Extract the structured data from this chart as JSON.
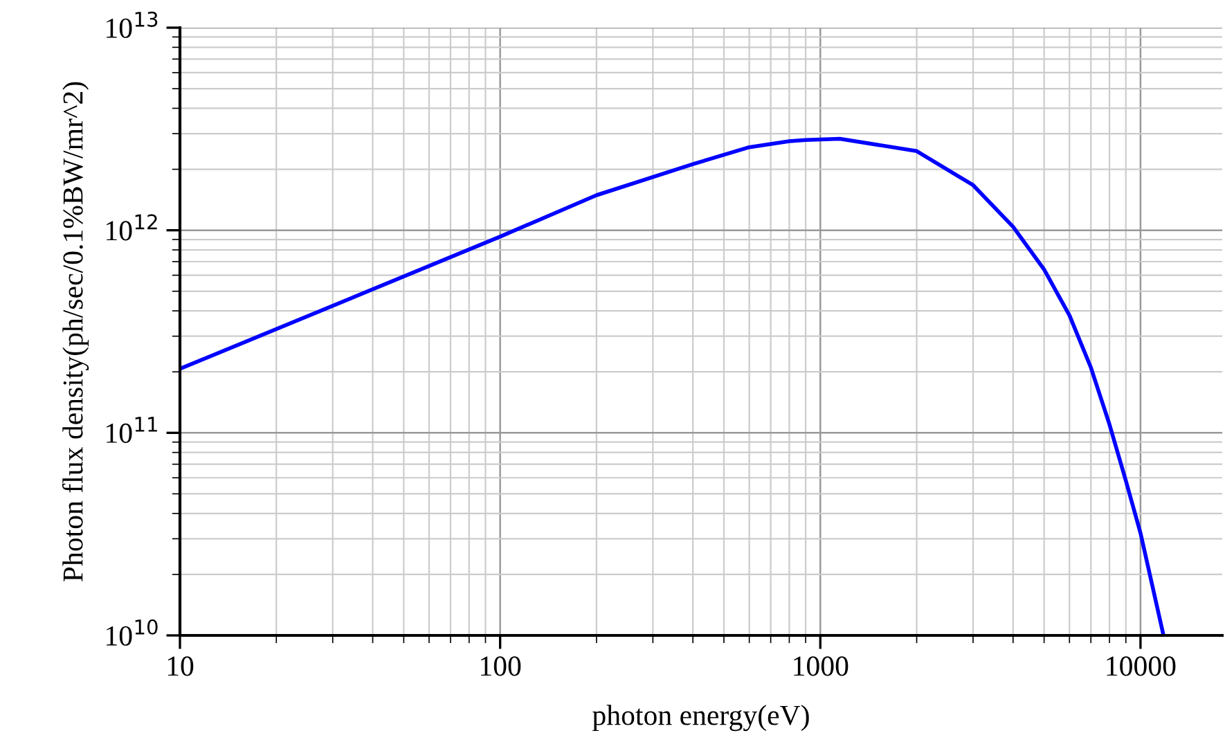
{
  "chart_data": {
    "type": "line",
    "xlabel": "photon energy(eV)",
    "ylabel": "Photon flux density(ph/sec/0.1%BW/mr^2)",
    "log": "xy",
    "grid": true,
    "xlim": [
      10,
      18000
    ],
    "ylim": [
      10000000000.0,
      10000000000000.0
    ],
    "xticks": [
      10,
      100,
      1000,
      10000
    ],
    "yticks": [
      {
        "value": 10000000000.0,
        "label": "10$^{10}$"
      },
      {
        "value": 100000000000.0,
        "label": "10$^{11}$"
      },
      {
        "value": 1000000000000.0,
        "label": "10$^{12}$"
      },
      {
        "value": 10000000000000.0,
        "label": "10$^{13}$"
      }
    ],
    "series": [
      {
        "color": "#0000ff",
        "x": [
          10,
          100,
          200,
          400,
          600,
          800,
          900,
          1150,
          2000,
          3000,
          4000,
          5000,
          6000,
          7000,
          8000,
          9000,
          10000,
          11800
        ],
        "values": [
          207000000000.0,
          930000000000.0,
          1490000000000.0,
          2120000000000.0,
          2570000000000.0,
          2750000000000.0,
          2790000000000.0,
          2830000000000.0,
          2460000000000.0,
          1670000000000.0,
          1040000000000.0,
          640000000000.0,
          380000000000.0,
          210000000000.0,
          110000000000.0,
          58000000000.0,
          32000000000.0,
          10000000000.0
        ]
      }
    ]
  }
}
